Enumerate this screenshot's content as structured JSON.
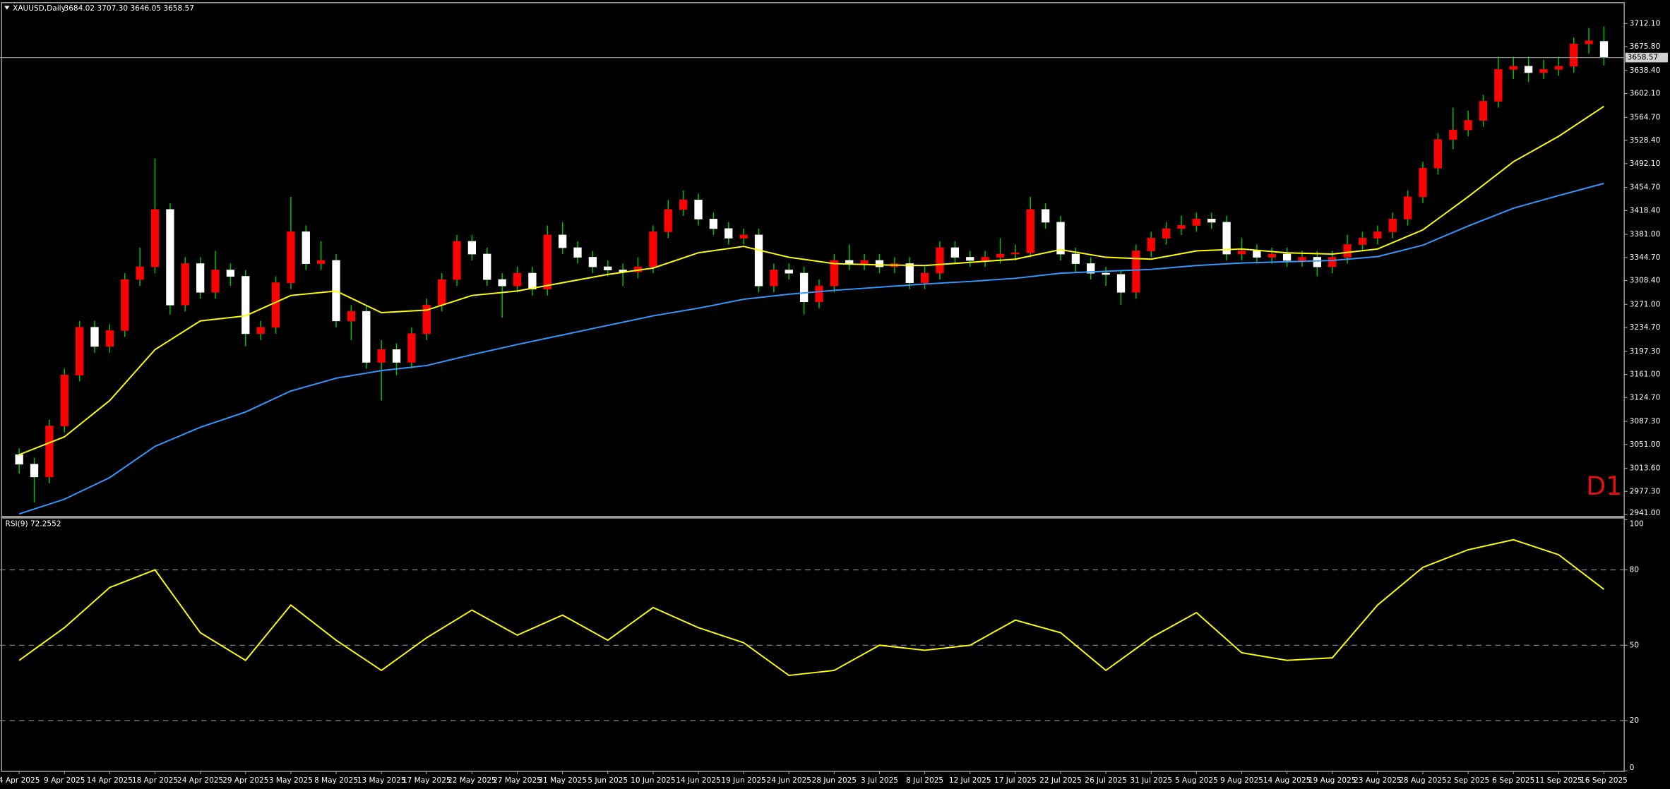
{
  "chart_data": [
    {
      "type": "candlestick",
      "title": "XAUUSD,Daily",
      "info": "3684.02 3707.30 3646.05 3658.57",
      "label": "D1",
      "categories": [
        "4 Apr 2025",
        null,
        null,
        "9 Apr 2025",
        null,
        null,
        "14 Apr 2025",
        null,
        null,
        "18 Apr 2025",
        null,
        null,
        "24 Apr 2025",
        null,
        null,
        "29 Apr 2025",
        null,
        null,
        "3 May 2025",
        null,
        null,
        "8 May 2025",
        null,
        null,
        "13 May 2025",
        null,
        null,
        "17 May 2025",
        null,
        null,
        "22 May 2025",
        null,
        null,
        "27 May 2025",
        null,
        null,
        "31 May 2025",
        null,
        null,
        "5 Jun 2025",
        null,
        null,
        "10 Jun 2025",
        null,
        null,
        "14 Jun 2025",
        null,
        null,
        "19 Jun 2025",
        null,
        null,
        "24 Jun 2025",
        null,
        null,
        "28 Jun 2025",
        null,
        null,
        "3 Jul 2025",
        null,
        null,
        "8 Jul 2025",
        null,
        null,
        "12 Jul 2025",
        null,
        null,
        "17 Jul 2025",
        null,
        null,
        "22 Jul 2025",
        null,
        null,
        "26 Jul 2025",
        null,
        null,
        "31 Jul 2025",
        null,
        null,
        "5 Aug 2025",
        null,
        null,
        "9 Aug 2025",
        null,
        null,
        "14 Aug 2025",
        null,
        null,
        "19 Aug 2025",
        null,
        null,
        "23 Aug 2025",
        null,
        null,
        "28 Aug 2025",
        null,
        null,
        "2 Sep 2025",
        null,
        null,
        "6 Sep 2025",
        null,
        null,
        "11 Sep 2025",
        null,
        null,
        "16 Sep 2025"
      ],
      "open": [
        3035,
        3020,
        3000,
        3080,
        3160,
        3235,
        3205,
        3230,
        3310,
        3330,
        3420,
        3270,
        3335,
        3290,
        3325,
        3315,
        3225,
        3235,
        3305,
        3385,
        3335,
        3340,
        3245,
        3260,
        3180,
        3200,
        3180,
        3225,
        3270,
        3310,
        3370,
        3350,
        3310,
        3300,
        3320,
        3295,
        3380,
        3360,
        3345,
        3330,
        3325,
        3322,
        3330,
        3385,
        3420,
        3435,
        3405,
        3390,
        3375,
        3380,
        3300,
        3325,
        3320,
        3275,
        3300,
        3340,
        3335,
        3340,
        3330,
        3335,
        3305,
        3320,
        3360,
        3345,
        3340,
        3345,
        3350,
        3352,
        3420,
        3400,
        3350,
        3335,
        3320,
        3318,
        3290,
        3355,
        3375,
        3390,
        3395,
        3405,
        3400,
        3350,
        3355,
        3345,
        3350,
        3340,
        3345,
        3330,
        3345,
        3365,
        3375,
        3385,
        3405,
        3440,
        3485,
        3530,
        3545,
        3560,
        3590,
        3640,
        3645,
        3635,
        3640,
        3645,
        3680,
        3684.02
      ],
      "high": [
        3045,
        3030,
        3090,
        3170,
        3245,
        3245,
        3240,
        3320,
        3360,
        3500,
        3430,
        3345,
        3345,
        3355,
        3335,
        3325,
        3245,
        3315,
        3440,
        3395,
        3370,
        3350,
        3270,
        3270,
        3215,
        3210,
        3235,
        3280,
        3320,
        3380,
        3380,
        3360,
        3320,
        3330,
        3330,
        3395,
        3400,
        3370,
        3355,
        3340,
        3335,
        3345,
        3395,
        3435,
        3450,
        3445,
        3415,
        3400,
        3390,
        3390,
        3335,
        3335,
        3330,
        3310,
        3350,
        3365,
        3350,
        3350,
        3345,
        3345,
        3330,
        3370,
        3370,
        3355,
        3355,
        3375,
        3365,
        3440,
        3430,
        3410,
        3360,
        3345,
        3330,
        3325,
        3365,
        3385,
        3400,
        3410,
        3415,
        3415,
        3410,
        3375,
        3365,
        3360,
        3360,
        3355,
        3355,
        3355,
        3380,
        3385,
        3395,
        3415,
        3450,
        3495,
        3540,
        3580,
        3575,
        3600,
        3660,
        3660,
        3660,
        3655,
        3660,
        3690,
        3705,
        3707.3
      ],
      "low": [
        3005,
        2960,
        2990,
        3070,
        3150,
        3195,
        3195,
        3220,
        3300,
        3320,
        3255,
        3260,
        3280,
        3280,
        3300,
        3205,
        3215,
        3225,
        3295,
        3325,
        3325,
        3235,
        3215,
        3170,
        3120,
        3160,
        3170,
        3215,
        3260,
        3300,
        3340,
        3300,
        3250,
        3290,
        3285,
        3285,
        3350,
        3335,
        3320,
        3315,
        3300,
        3312,
        3320,
        3375,
        3410,
        3395,
        3380,
        3365,
        3365,
        3290,
        3290,
        3310,
        3255,
        3265,
        3290,
        3325,
        3325,
        3320,
        3320,
        3295,
        3295,
        3310,
        3335,
        3330,
        3330,
        3335,
        3340,
        3345,
        3390,
        3340,
        3320,
        3310,
        3300,
        3270,
        3280,
        3345,
        3365,
        3380,
        3385,
        3390,
        3340,
        3340,
        3335,
        3335,
        3330,
        3330,
        3315,
        3320,
        3335,
        3355,
        3365,
        3375,
        3395,
        3430,
        3475,
        3515,
        3535,
        3550,
        3580,
        3625,
        3620,
        3625,
        3630,
        3635,
        3665,
        3646.05
      ],
      "close": [
        3020,
        3000,
        3080,
        3160,
        3235,
        3205,
        3230,
        3310,
        3330,
        3420,
        3270,
        3335,
        3290,
        3325,
        3315,
        3225,
        3235,
        3305,
        3385,
        3335,
        3340,
        3245,
        3260,
        3180,
        3200,
        3180,
        3225,
        3270,
        3310,
        3370,
        3350,
        3310,
        3300,
        3320,
        3295,
        3380,
        3360,
        3345,
        3330,
        3325,
        3322,
        3330,
        3385,
        3420,
        3435,
        3405,
        3390,
        3375,
        3380,
        3300,
        3325,
        3320,
        3275,
        3300,
        3340,
        3335,
        3340,
        3330,
        3335,
        3305,
        3320,
        3360,
        3345,
        3340,
        3345,
        3350,
        3352,
        3420,
        3400,
        3350,
        3335,
        3320,
        3318,
        3290,
        3355,
        3375,
        3390,
        3395,
        3405,
        3400,
        3350,
        3355,
        3345,
        3350,
        3340,
        3345,
        3330,
        3345,
        3365,
        3375,
        3385,
        3405,
        3440,
        3485,
        3530,
        3545,
        3560,
        3590,
        3640,
        3645,
        3635,
        3640,
        3645,
        3680,
        3685,
        3658.57
      ],
      "up_color": "#ff0000",
      "down_color": "#ffffff",
      "wick_color": "#00c000",
      "series": [
        {
          "color": "#ffff00",
          "x": [
            0,
            3,
            6,
            9,
            12,
            15,
            18,
            21,
            24,
            27,
            30,
            33,
            36,
            39,
            42,
            45,
            48,
            51,
            54,
            57,
            60,
            63,
            66,
            69,
            72,
            75,
            78,
            81,
            84,
            87,
            90,
            93,
            96,
            99,
            102,
            105
          ],
          "values": [
            3035,
            3063,
            3120,
            3200,
            3245,
            3253,
            3285,
            3292,
            3258,
            3262,
            3285,
            3292,
            3305,
            3318,
            3328,
            3352,
            3362,
            3345,
            3335,
            3333,
            3332,
            3337,
            3342,
            3357,
            3345,
            3342,
            3355,
            3358,
            3352,
            3350,
            3358,
            3388,
            3440,
            3495,
            3535,
            3582
          ]
        },
        {
          "color": "#3399ff",
          "x": [
            0,
            3,
            6,
            9,
            12,
            15,
            18,
            21,
            24,
            27,
            30,
            33,
            36,
            39,
            42,
            45,
            48,
            51,
            54,
            57,
            60,
            63,
            66,
            69,
            72,
            75,
            78,
            81,
            84,
            87,
            90,
            93,
            96,
            99,
            102,
            105
          ],
          "values": [
            2942,
            2965,
            2999,
            3048,
            3078,
            3102,
            3135,
            3155,
            3167,
            3175,
            3192,
            3208,
            3223,
            3238,
            3253,
            3265,
            3279,
            3287,
            3293,
            3298,
            3303,
            3307,
            3312,
            3320,
            3323,
            3326,
            3332,
            3336,
            3338,
            3340,
            3346,
            3364,
            3394,
            3422,
            3442,
            3461
          ]
        }
      ],
      "price_line": {
        "value": 3658.57,
        "label": "3658.57"
      },
      "ylim": [
        2938,
        3744
      ],
      "yticks": [
        {
          "value": 3712.1,
          "label": "3712.10"
        },
        {
          "value": 3675.8,
          "label": "3675.80"
        },
        {
          "value": 3638.4,
          "label": "3638.40"
        },
        {
          "value": 3602.1,
          "label": "3602.10"
        },
        {
          "value": 3564.7,
          "label": "3564.70"
        },
        {
          "value": 3528.4,
          "label": "3528.40"
        },
        {
          "value": 3492.1,
          "label": "3492.10"
        },
        {
          "value": 3454.7,
          "label": "3454.70"
        },
        {
          "value": 3418.4,
          "label": "3418.40"
        },
        {
          "value": 3381,
          "label": "3381.00"
        },
        {
          "value": 3344.7,
          "label": "3344.70"
        },
        {
          "value": 3308.4,
          "label": "3308.40"
        },
        {
          "value": 3271,
          "label": "3271.00"
        },
        {
          "value": 3234.7,
          "label": "3234.70"
        },
        {
          "value": 3197.3,
          "label": "3197.30"
        },
        {
          "value": 3161,
          "label": "3161.00"
        },
        {
          "value": 3124.7,
          "label": "3124.70"
        },
        {
          "value": 3087.3,
          "label": "3087.30"
        },
        {
          "value": 3051,
          "label": "3051.00"
        },
        {
          "value": 3013.6,
          "label": "3013.60"
        },
        {
          "value": 2977.3,
          "label": "2977.30"
        },
        {
          "value": 2941,
          "label": "2941.00"
        }
      ],
      "grid": false
    },
    {
      "type": "line",
      "title": "RSI(9) 72.2552",
      "color": "#ffff00",
      "x": [
        0,
        3,
        6,
        9,
        12,
        15,
        18,
        21,
        24,
        27,
        30,
        33,
        36,
        39,
        42,
        45,
        48,
        51,
        54,
        57,
        60,
        63,
        66,
        69,
        72,
        75,
        78,
        81,
        84,
        87,
        90,
        93,
        96,
        99,
        102,
        105
      ],
      "values": [
        44,
        57,
        73,
        80,
        55,
        44,
        66,
        52,
        40,
        53,
        64,
        54,
        62,
        52,
        65,
        57,
        51,
        38,
        40,
        50,
        48,
        50,
        60,
        55,
        40,
        53,
        63,
        47,
        44,
        45,
        66,
        81,
        88,
        92,
        86,
        72.2552
      ],
      "ylim": [
        0,
        100
      ],
      "yticks": [
        100,
        80,
        50,
        20,
        0
      ],
      "grid": true
    }
  ]
}
